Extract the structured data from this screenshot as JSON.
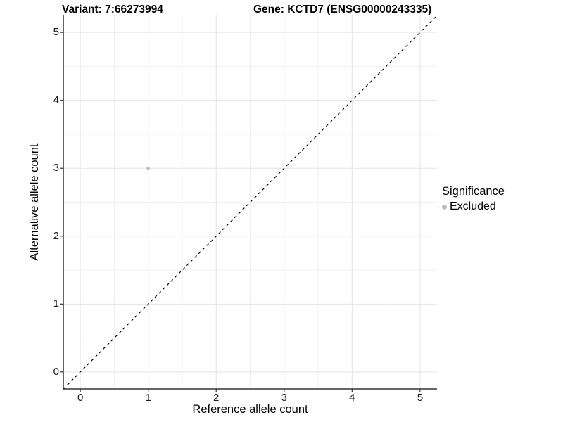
{
  "chart_data": {
    "type": "scatter",
    "title_left": "Variant: 7:66273994",
    "title_right": "Gene: KCTD7 (ENSG00000243335)",
    "xlabel": "Reference allele count",
    "ylabel": "Alternative allele count",
    "xlim": [
      -0.25,
      5.25
    ],
    "ylim": [
      -0.25,
      5.25
    ],
    "x_ticks": [
      0,
      1,
      2,
      3,
      4,
      5
    ],
    "y_ticks": [
      0,
      1,
      2,
      3,
      4,
      5
    ],
    "grid": "major gridlines at integers, minor gridlines at half-integers, white panel background, axis lines on left and bottom only",
    "legend_title": "Significance",
    "legend_position": "right",
    "series": [
      {
        "name": "Excluded",
        "color": "#bdbdbd",
        "point_radius": 2.3,
        "points": [
          [
            1,
            3
          ]
        ]
      }
    ],
    "reference_line": {
      "kind": "identity y=x",
      "style": "dashed",
      "color": "#000000"
    },
    "colors": {
      "major_grid": "#e4e4e4",
      "minor_grid": "#f0f0f0",
      "axis_line": "#333333",
      "tick_mark": "#333333",
      "text": "#000000"
    }
  }
}
